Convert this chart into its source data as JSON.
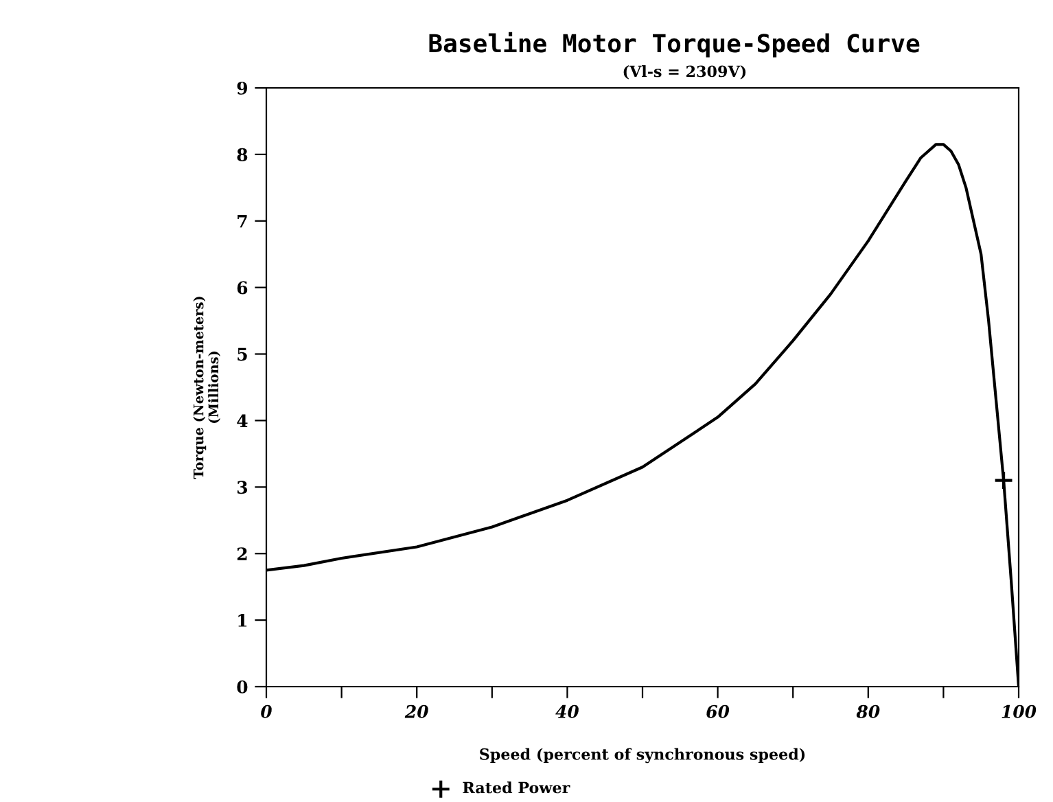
{
  "chart_data": {
    "type": "line",
    "title": "Baseline Motor Torque-Speed Curve",
    "subtitle": "(Vl-s = 2309V)",
    "xlabel": "Speed (percent of synchronous speed)",
    "ylabel": "Torque (Newton-meters)\n(Millions)",
    "xlim": [
      0,
      100
    ],
    "ylim": [
      0,
      9
    ],
    "xticks": [
      0,
      {
        "value": 10,
        "label": null
      },
      20,
      {
        "value": 30,
        "label": null
      },
      40,
      {
        "value": 50,
        "label": null
      },
      60,
      {
        "value": 70,
        "label": null
      },
      80,
      {
        "value": 90,
        "label": null
      },
      100
    ],
    "yticks": [
      0,
      1,
      2,
      3,
      4,
      5,
      6,
      7,
      8,
      9
    ],
    "grid": false,
    "legend": "bottom",
    "series": [
      {
        "color": "#000000",
        "marker": "none",
        "x": [
          0,
          5,
          10,
          20,
          30,
          40,
          50,
          60,
          65,
          70,
          75,
          80,
          85,
          87,
          89,
          90,
          91,
          92,
          93,
          94,
          95,
          96,
          97,
          98,
          99,
          100
        ],
        "values": [
          1.75,
          1.82,
          1.93,
          2.1,
          2.4,
          2.8,
          3.3,
          4.05,
          4.55,
          5.2,
          5.9,
          6.7,
          7.6,
          7.95,
          8.15,
          8.15,
          8.05,
          7.85,
          7.5,
          7.0,
          6.5,
          5.5,
          4.3,
          3.1,
          1.6,
          0
        ]
      },
      {
        "type": "scatter",
        "name": "Rated Power",
        "color": "#000000",
        "marker": "cross",
        "x": [
          98
        ],
        "values": [
          3.1
        ]
      }
    ]
  }
}
